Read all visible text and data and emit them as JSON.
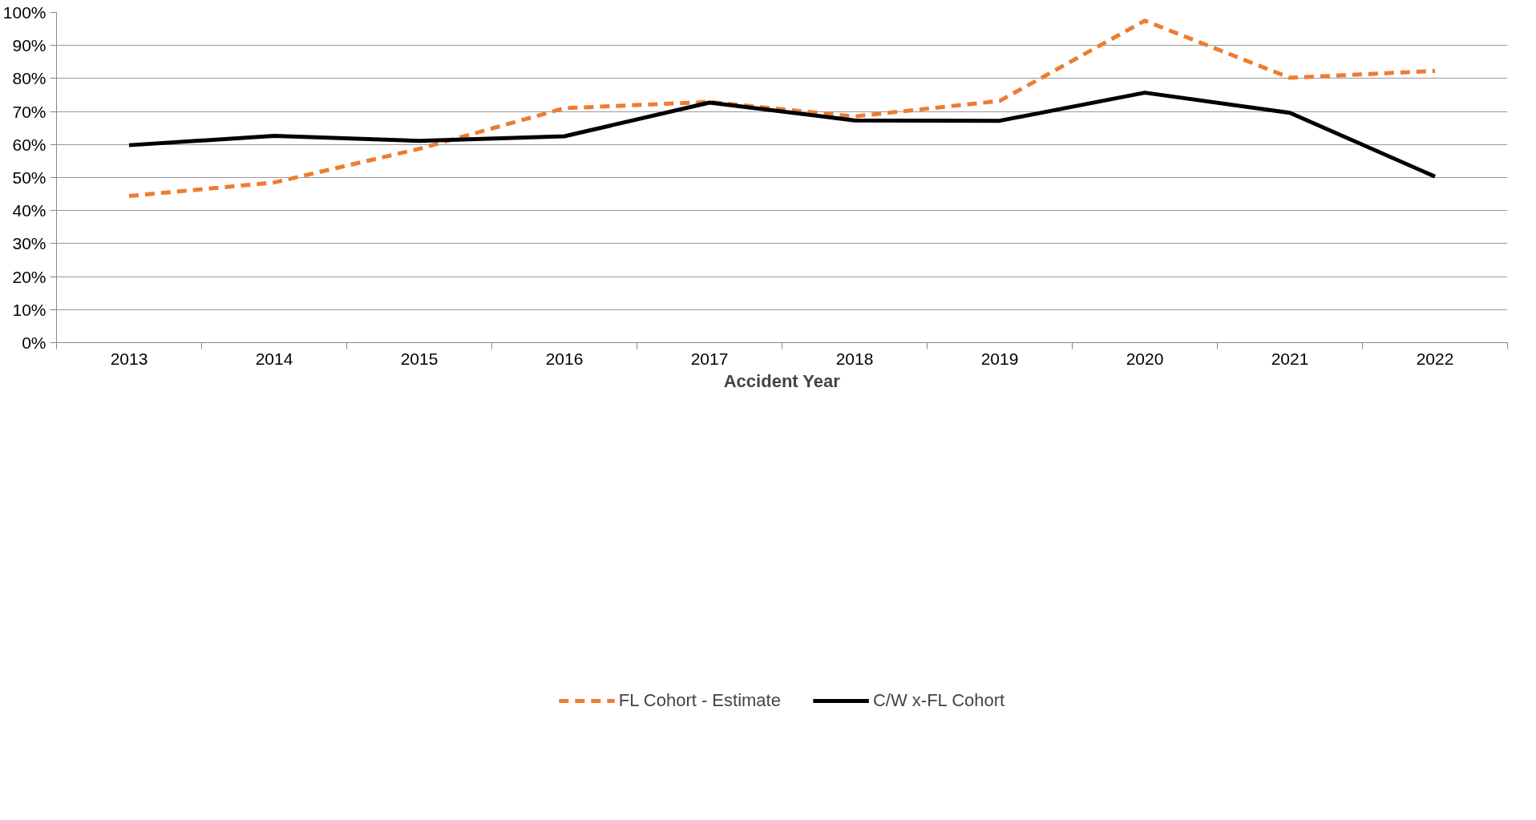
{
  "chart_data": {
    "type": "line",
    "xlabel": "Accident Year",
    "categories": [
      "2013",
      "2014",
      "2015",
      "2016",
      "2017",
      "2018",
      "2019",
      "2020",
      "2021",
      "2022"
    ],
    "series": [
      {
        "name": "FL Cohort - Estimate",
        "color": "#ed7d31",
        "line_style": "dashed",
        "values": [
          44.4,
          48.5,
          58.7,
          71.0,
          72.9,
          68.5,
          73.2,
          97.5,
          80.2,
          82.3
        ]
      },
      {
        "name": "C/W x-FL Cohort",
        "color": "#000000",
        "line_style": "solid",
        "values": [
          59.8,
          62.6,
          61.1,
          62.5,
          72.7,
          67.3,
          67.2,
          75.7,
          69.6,
          50.3
        ]
      }
    ],
    "ylim": [
      0,
      100
    ],
    "yticks": [
      {
        "value": 0,
        "label": "0%"
      },
      {
        "value": 10,
        "label": "10%"
      },
      {
        "value": 20,
        "label": "20%"
      },
      {
        "value": 30,
        "label": "30%"
      },
      {
        "value": 40,
        "label": "40%"
      },
      {
        "value": 50,
        "label": "50%"
      },
      {
        "value": 60,
        "label": "60%"
      },
      {
        "value": 70,
        "label": "70%"
      },
      {
        "value": 80,
        "label": "80%"
      },
      {
        "value": 90,
        "label": "90%"
      },
      {
        "value": 100,
        "label": "100%"
      }
    ],
    "grid": "y",
    "legend": "bottom",
    "marker": "none"
  }
}
